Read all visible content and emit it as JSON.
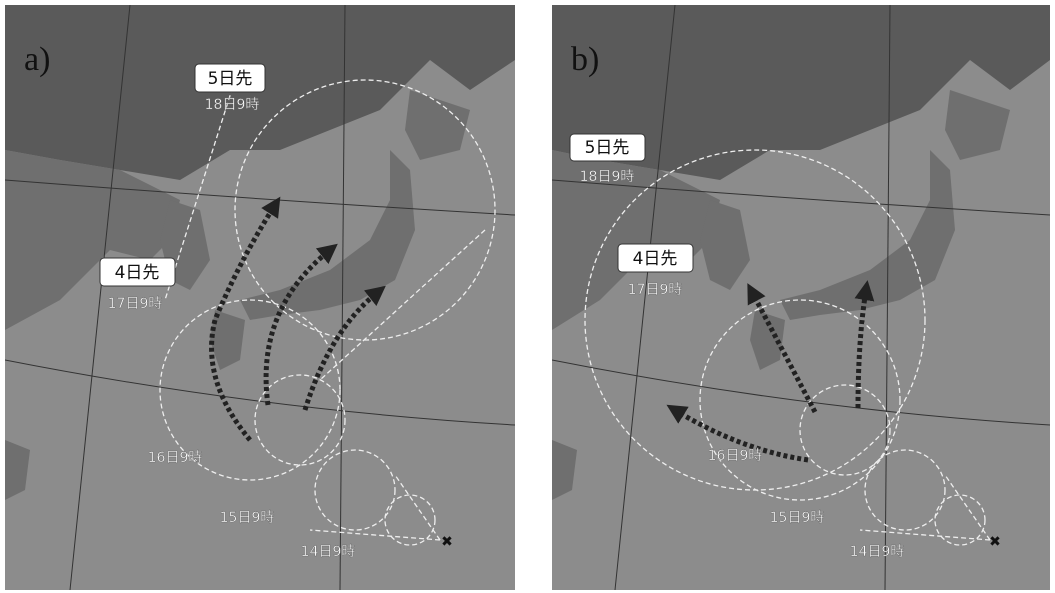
{
  "panels": [
    {
      "label": "a)",
      "forecast_5day": {
        "badge": "5日先",
        "time": "18日9時"
      },
      "forecast_4day": {
        "badge": "4日先",
        "time": "17日9時"
      },
      "times": [
        "16日9時",
        "15日9時",
        "14日9時"
      ]
    },
    {
      "label": "b)",
      "forecast_5day": {
        "badge": "5日先",
        "time": "18日9時"
      },
      "forecast_4day": {
        "badge": "4日先",
        "time": "17日9時"
      },
      "times": [
        "16日9時",
        "15日9時",
        "14日9時"
      ]
    }
  ]
}
